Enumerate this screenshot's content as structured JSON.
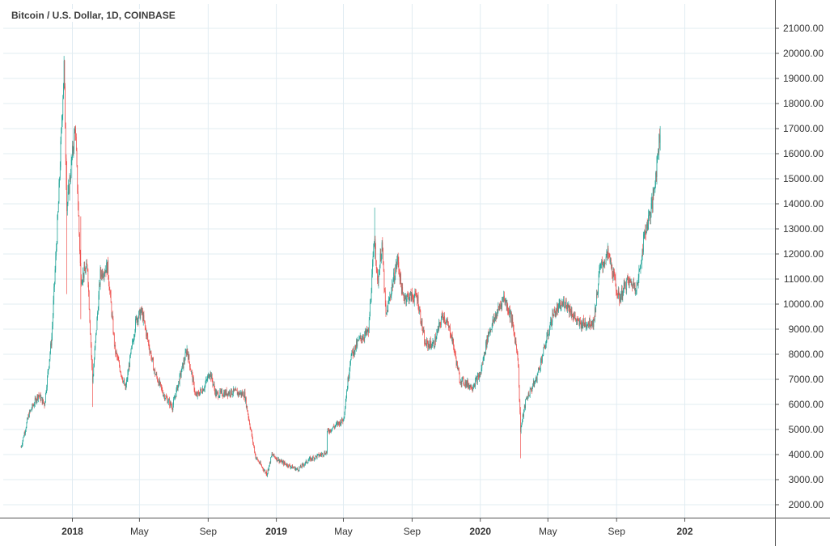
{
  "chart_data": {
    "type": "candlestick",
    "title": "Bitcoin / U.S. Dollar, 1D, COINBASE",
    "xlabel": "",
    "ylabel": "",
    "ylim": [
      1500,
      21500
    ],
    "y_ticks": [
      "2000.00",
      "3000.00",
      "4000.00",
      "5000.00",
      "6000.00",
      "7000.00",
      "8000.00",
      "9000.00",
      "10000.00",
      "11000.00",
      "12000.00",
      "13000.00",
      "14000.00",
      "15000.00",
      "16000.00",
      "17000.00",
      "18000.00",
      "19000.00",
      "20000.00",
      "21000.00"
    ],
    "x_ticks": [
      {
        "label": "2018",
        "bold": true
      },
      {
        "label": "May",
        "bold": false
      },
      {
        "label": "Sep",
        "bold": false
      },
      {
        "label": "2019",
        "bold": true
      },
      {
        "label": "May",
        "bold": false
      },
      {
        "label": "Sep",
        "bold": false
      },
      {
        "label": "2020",
        "bold": true
      },
      {
        "label": "May",
        "bold": false
      },
      {
        "label": "Sep",
        "bold": false
      },
      {
        "label": "202",
        "bold": true
      }
    ],
    "grid": true,
    "colors": {
      "up": "#26a69a",
      "down": "#ef5350",
      "grid": "#e1ecf2",
      "axis": "#555555",
      "text": "#333333"
    },
    "price_path": [
      [
        "2017-10-01",
        4300
      ],
      [
        "2017-10-15",
        5600
      ],
      [
        "2017-11-01",
        6400
      ],
      [
        "2017-11-12",
        6000
      ],
      [
        "2017-11-25",
        8700
      ],
      [
        "2017-12-07",
        14000
      ],
      [
        "2017-12-17",
        19500
      ],
      [
        "2017-12-22",
        13800
      ],
      [
        "2018-01-06",
        17100
      ],
      [
        "2018-01-16",
        11000
      ],
      [
        "2018-01-28",
        11500
      ],
      [
        "2018-02-06",
        6900
      ],
      [
        "2018-02-20",
        11200
      ],
      [
        "2018-03-05",
        11500
      ],
      [
        "2018-03-18",
        8200
      ],
      [
        "2018-04-06",
        6600
      ],
      [
        "2018-04-25",
        9400
      ],
      [
        "2018-05-05",
        9700
      ],
      [
        "2018-05-28",
        7300
      ],
      [
        "2018-06-13",
        6400
      ],
      [
        "2018-06-29",
        5900
      ],
      [
        "2018-07-25",
        8200
      ],
      [
        "2018-08-10",
        6300
      ],
      [
        "2018-08-25",
        6700
      ],
      [
        "2018-09-04",
        7300
      ],
      [
        "2018-09-15",
        6400
      ],
      [
        "2018-10-15",
        6500
      ],
      [
        "2018-11-05",
        6400
      ],
      [
        "2018-11-20",
        4500
      ],
      [
        "2018-11-25",
        3900
      ],
      [
        "2018-12-15",
        3200
      ],
      [
        "2018-12-24",
        4000
      ],
      [
        "2019-01-10",
        3700
      ],
      [
        "2019-02-08",
        3400
      ],
      [
        "2019-03-01",
        3800
      ],
      [
        "2019-04-01",
        4100
      ],
      [
        "2019-04-02",
        4900
      ],
      [
        "2019-05-01",
        5400
      ],
      [
        "2019-05-14",
        7900
      ],
      [
        "2019-05-30",
        8600
      ],
      [
        "2019-06-15",
        8900
      ],
      [
        "2019-06-26",
        12800
      ],
      [
        "2019-07-01",
        10800
      ],
      [
        "2019-07-09",
        12400
      ],
      [
        "2019-07-16",
        9500
      ],
      [
        "2019-08-06",
        11800
      ],
      [
        "2019-08-15",
        10300
      ],
      [
        "2019-09-10",
        10300
      ],
      [
        "2019-09-24",
        8400
      ],
      [
        "2019-10-10",
        8400
      ],
      [
        "2019-10-26",
        9600
      ],
      [
        "2019-11-10",
        8800
      ],
      [
        "2019-11-25",
        7000
      ],
      [
        "2019-12-17",
        6700
      ],
      [
        "2020-01-01",
        7200
      ],
      [
        "2020-01-15",
        8800
      ],
      [
        "2020-02-12",
        10300
      ],
      [
        "2020-02-25",
        9500
      ],
      [
        "2020-03-08",
        8000
      ],
      [
        "2020-03-13",
        5000
      ],
      [
        "2020-03-23",
        6200
      ],
      [
        "2020-04-10",
        7000
      ],
      [
        "2020-04-30",
        8700
      ],
      [
        "2020-05-10",
        9600
      ],
      [
        "2020-06-01",
        10100
      ],
      [
        "2020-06-25",
        9200
      ],
      [
        "2020-07-22",
        9300
      ],
      [
        "2020-08-02",
        11400
      ],
      [
        "2020-08-17",
        12000
      ],
      [
        "2020-09-05",
        10200
      ],
      [
        "2020-09-20",
        10900
      ],
      [
        "2020-10-08",
        10700
      ],
      [
        "2020-10-21",
        12800
      ],
      [
        "2020-11-04",
        14000
      ],
      [
        "2020-11-12",
        15600
      ],
      [
        "2020-11-18",
        17000
      ]
    ],
    "spikes": [
      {
        "date": "2017-12-17",
        "high": 19900,
        "low": 18800
      },
      {
        "date": "2017-12-22",
        "high": 15700,
        "low": 10400
      },
      {
        "date": "2018-01-16",
        "high": 13500,
        "low": 9400
      },
      {
        "date": "2018-02-06",
        "high": 7800,
        "low": 5900
      },
      {
        "date": "2018-12-15",
        "high": 3400,
        "low": 3150
      },
      {
        "date": "2019-06-26",
        "high": 13850,
        "low": 11800
      },
      {
        "date": "2020-03-13",
        "high": 5900,
        "low": 3850
      },
      {
        "date": "2020-11-18",
        "high": 17100,
        "low": 16800
      }
    ]
  }
}
